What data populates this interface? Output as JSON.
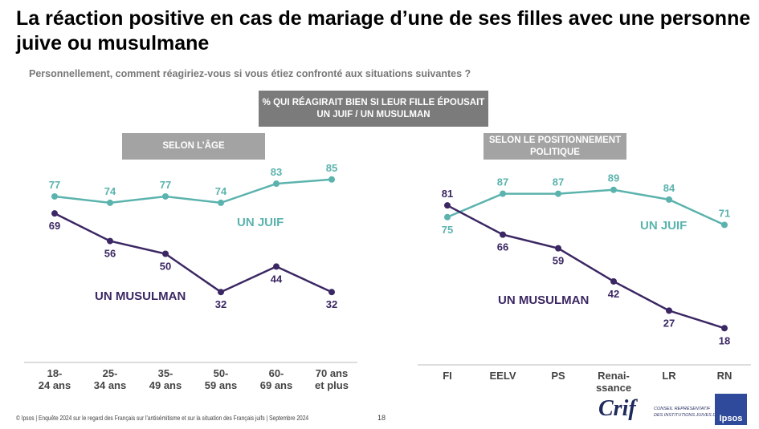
{
  "title": "La réaction positive en cas de mariage d’une de ses filles avec une personne juive ou musulmane",
  "subtitle": "Personnellement, comment réagiriez-vous si vous étiez confronté aux situations suivantes ?",
  "main_box": "% QUI RÉAGIRAIT BIEN SI LEUR FILLE ÉPOUSAIT UN JUIF / UN MUSULMAN",
  "colors": {
    "juif": "#5bb3ad",
    "musulman": "#3b2763",
    "box_dark": "#7b7b7b",
    "box_light": "#a3a3a3"
  },
  "footer": "© Ipsos | Enquête 2024 sur le regard des Français sur l'antisémitisme et sur la situation des Français juifs | Septembre 2024",
  "page_number": "18",
  "logos": {
    "crif": "Crif",
    "crif_sub": "CONSEIL REPRÉSENTATIF DES INSTITUTIONS JUIVES DE FRANCE",
    "ipsos": "Ipsos"
  },
  "chart_data": [
    {
      "type": "line",
      "title": "SELON L’ÂGE",
      "categories": [
        "18-\n24 ans",
        "25-\n34 ans",
        "35-\n49 ans",
        "50-\n59 ans",
        "60-\n69 ans",
        "70 ans\net plus"
      ],
      "series": [
        {
          "name": "UN JUIF",
          "values": [
            77,
            74,
            77,
            74,
            83,
            85
          ]
        },
        {
          "name": "UN MUSULMAN",
          "values": [
            69,
            56,
            50,
            32,
            44,
            32
          ]
        }
      ]
    },
    {
      "type": "line",
      "title": "SELON LE POSITIONNEMENT POLITIQUE",
      "categories": [
        "FI",
        "EELV",
        "PS",
        "Renai-\nssance",
        "LR",
        "RN"
      ],
      "series": [
        {
          "name": "UN JUIF",
          "values": [
            75,
            87,
            87,
            89,
            84,
            71
          ]
        },
        {
          "name": "UN MUSULMAN",
          "values": [
            81,
            66,
            59,
            42,
            27,
            18
          ]
        }
      ]
    }
  ]
}
